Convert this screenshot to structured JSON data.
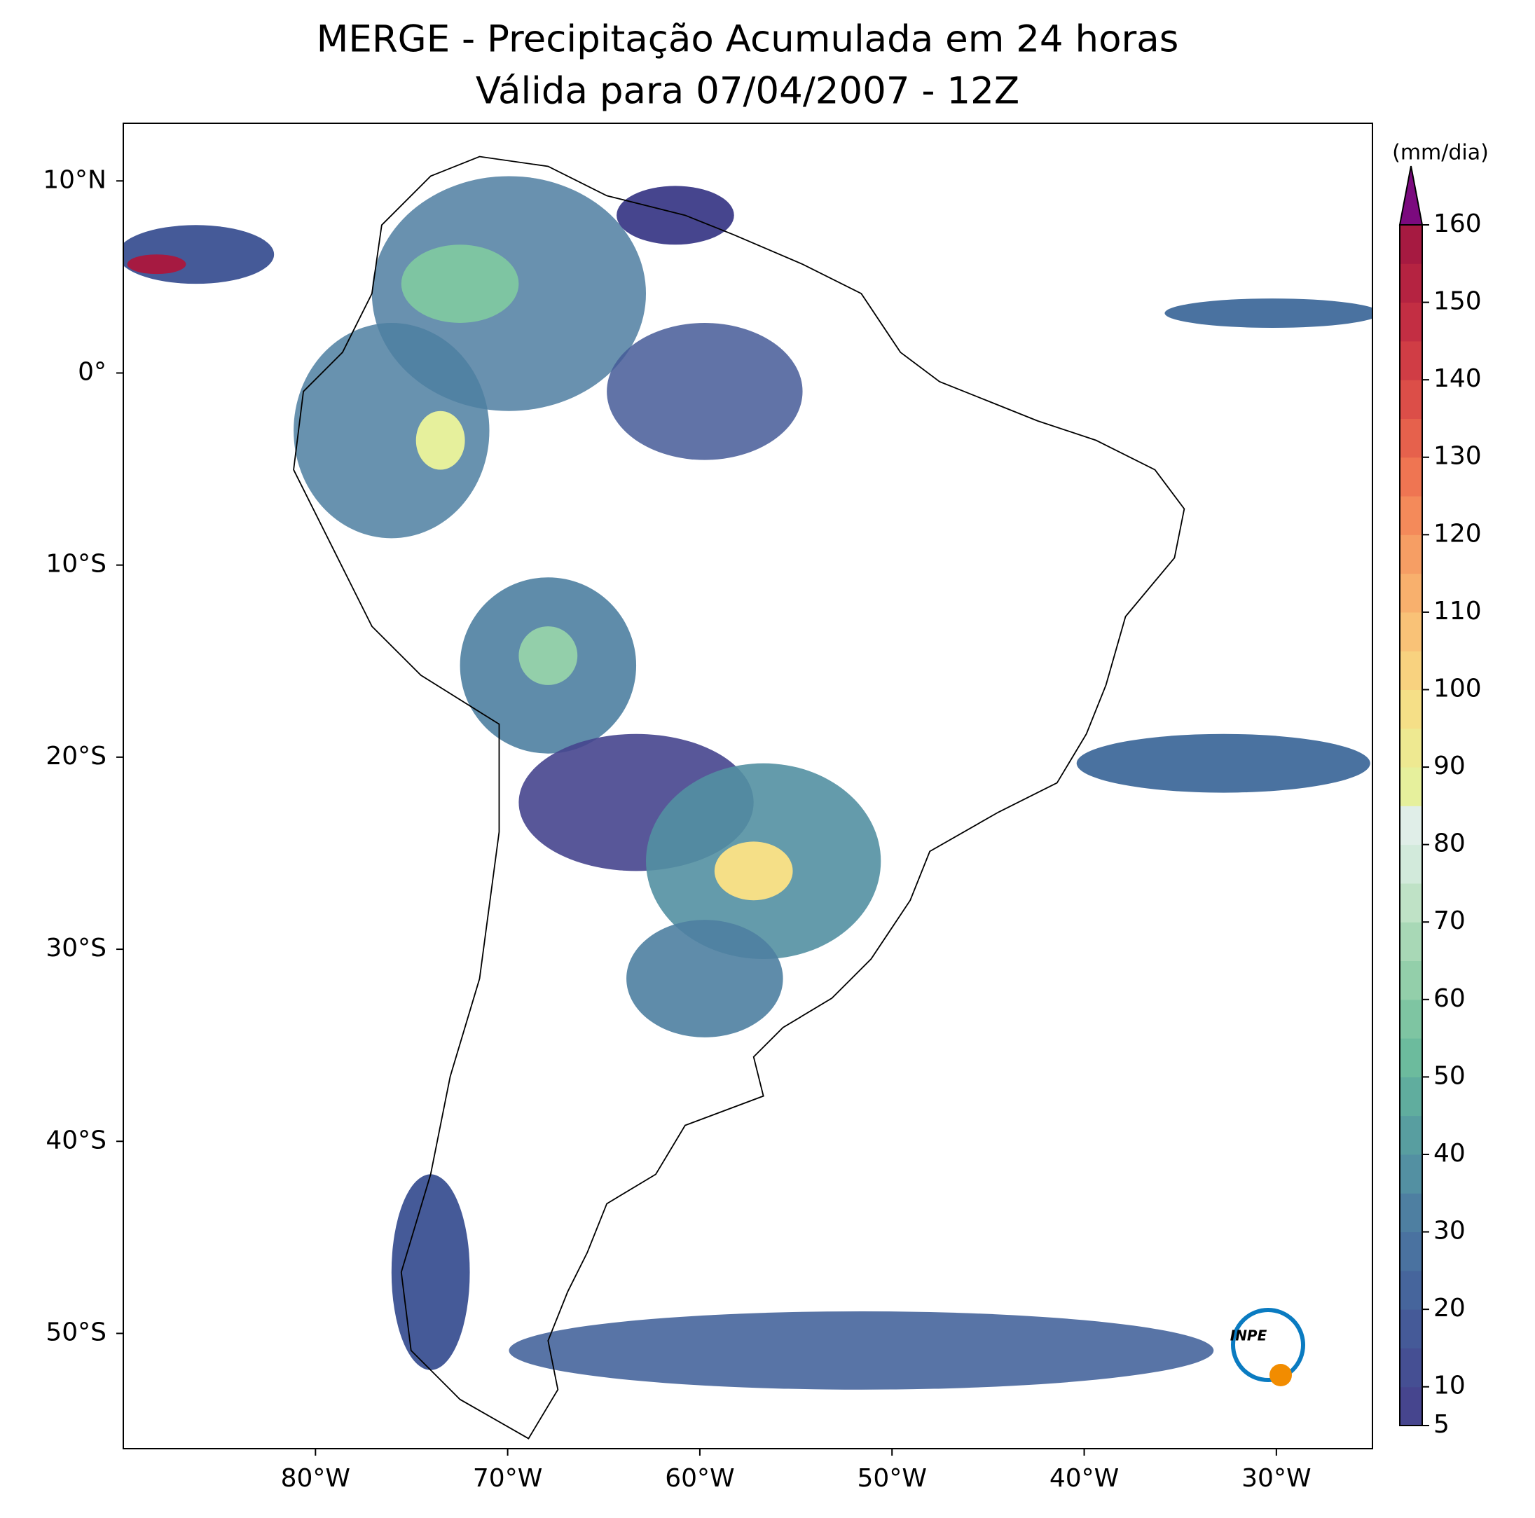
{
  "title": "MERGE - Precipitação Acumulada em 24 horas",
  "subtitle": "Válida para 07/04/2007 - 12Z",
  "map": {
    "xlim": [
      -90,
      -25
    ],
    "ylim": [
      -56,
      13
    ],
    "xticks": [
      {
        "value": -80,
        "label": "80°W"
      },
      {
        "value": -70,
        "label": "70°W"
      },
      {
        "value": -60,
        "label": "60°W"
      },
      {
        "value": -50,
        "label": "50°W"
      },
      {
        "value": -40,
        "label": "40°W"
      },
      {
        "value": -30,
        "label": "30°W"
      }
    ],
    "yticks": [
      {
        "value": 10,
        "label": "10°N"
      },
      {
        "value": 0,
        "label": "0°"
      },
      {
        "value": -10,
        "label": "10°S"
      },
      {
        "value": -20,
        "label": "20°S"
      },
      {
        "value": -30,
        "label": "30°S"
      },
      {
        "value": -40,
        "label": "40°S"
      },
      {
        "value": -50,
        "label": "50°S"
      }
    ]
  },
  "colorbar": {
    "label": "(mm/dia)",
    "lim": [
      5,
      160
    ],
    "ticks": [
      5,
      10,
      20,
      30,
      40,
      50,
      60,
      70,
      80,
      90,
      100,
      110,
      120,
      130,
      140,
      150,
      160
    ],
    "colors": [
      "#46458e",
      "#454f93",
      "#455a98",
      "#46659c",
      "#4a72a0",
      "#4e7fa1",
      "#5390a2",
      "#589ea0",
      "#60ad9e",
      "#6cbb9d",
      "#7ec5a2",
      "#93cfaa",
      "#a8d8b6",
      "#bfe2c6",
      "#d2eadb",
      "#e0eee8",
      "#e6f09c",
      "#eee991",
      "#f5df87",
      "#f8d27f",
      "#f9c277",
      "#f8b06d",
      "#f69e64",
      "#f48a5a",
      "#ef7552",
      "#e6614c",
      "#dc4e48",
      "#d03d45",
      "#c32e43",
      "#b52341",
      "#a61a41"
    ],
    "extend_color": "#7b0a7e"
  },
  "logo_text": "INPE"
}
